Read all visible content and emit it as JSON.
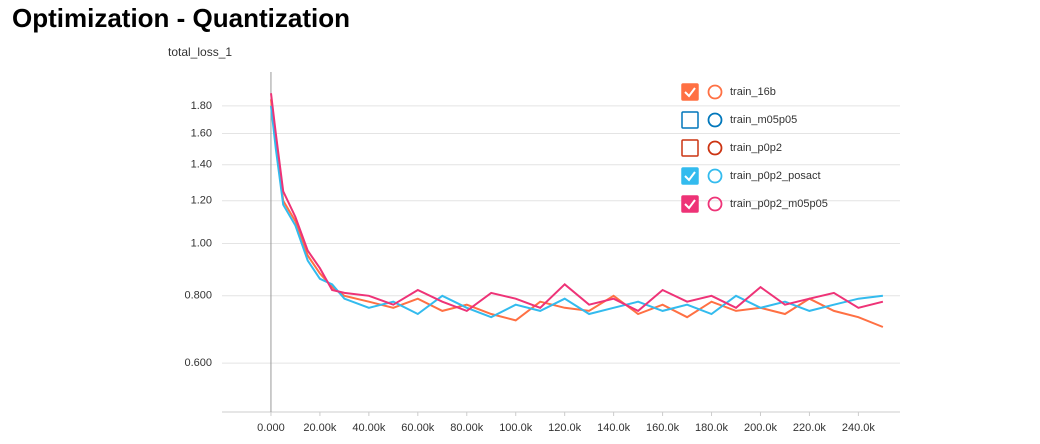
{
  "page_title": "Optimization - Quantization",
  "chart_data": {
    "type": "line",
    "title": "total_loss_1",
    "log_y": true,
    "grid": true,
    "legend": "top-right",
    "x": [
      0,
      2000,
      5000,
      10000,
      15000,
      20000,
      25000,
      30000,
      40000,
      50000,
      60000,
      70000,
      80000,
      90000,
      100000,
      110000,
      120000,
      130000,
      140000,
      150000,
      160000,
      170000,
      180000,
      190000,
      200000,
      210000,
      220000,
      230000,
      240000,
      250000
    ],
    "series": [
      {
        "name": "train_16b",
        "color": "#ff7043",
        "checked": true,
        "values": [
          1.85,
          1.55,
          1.2,
          1.1,
          0.95,
          0.88,
          0.83,
          0.8,
          0.78,
          0.76,
          0.79,
          0.75,
          0.77,
          0.74,
          0.72,
          0.78,
          0.76,
          0.75,
          0.8,
          0.74,
          0.77,
          0.73,
          0.78,
          0.75,
          0.76,
          0.74,
          0.79,
          0.75,
          0.73,
          0.7
        ]
      },
      {
        "name": "train_m05p05",
        "color": "#0077bb",
        "checked": false
      },
      {
        "name": "train_p0p2",
        "color": "#cc3311",
        "checked": false
      },
      {
        "name": "train_p0p2_posact",
        "color": "#33bbee",
        "checked": true,
        "values": [
          1.8,
          1.5,
          1.18,
          1.08,
          0.93,
          0.86,
          0.84,
          0.79,
          0.76,
          0.78,
          0.74,
          0.8,
          0.76,
          0.73,
          0.77,
          0.75,
          0.79,
          0.74,
          0.76,
          0.78,
          0.75,
          0.77,
          0.74,
          0.8,
          0.76,
          0.78,
          0.75,
          0.77,
          0.79,
          0.8
        ]
      },
      {
        "name": "train_p0p2_m05p05",
        "color": "#ee3377",
        "checked": true,
        "values": [
          1.9,
          1.6,
          1.25,
          1.12,
          0.97,
          0.9,
          0.82,
          0.81,
          0.8,
          0.77,
          0.82,
          0.78,
          0.75,
          0.81,
          0.79,
          0.76,
          0.84,
          0.77,
          0.79,
          0.75,
          0.82,
          0.78,
          0.8,
          0.76,
          0.83,
          0.77,
          0.79,
          0.81,
          0.76,
          0.78
        ]
      }
    ],
    "xlim": [
      -20000,
      257000
    ],
    "xticks": [
      {
        "value": 0,
        "label": "0.000"
      },
      {
        "value": 20000,
        "label": "20.00k"
      },
      {
        "value": 40000,
        "label": "40.00k"
      },
      {
        "value": 60000,
        "label": "60.00k"
      },
      {
        "value": 80000,
        "label": "80.00k"
      },
      {
        "value": 100000,
        "label": "100.0k"
      },
      {
        "value": 120000,
        "label": "120.0k"
      },
      {
        "value": 140000,
        "label": "140.0k"
      },
      {
        "value": 160000,
        "label": "160.0k"
      },
      {
        "value": 180000,
        "label": "180.0k"
      },
      {
        "value": 200000,
        "label": "200.0k"
      },
      {
        "value": 220000,
        "label": "220.0k"
      },
      {
        "value": 240000,
        "label": "240.0k"
      }
    ],
    "ylim": [
      0.487,
      2.08
    ],
    "yticks": [
      {
        "value": 0.6,
        "label": "0.600"
      },
      {
        "value": 0.8,
        "label": "0.800"
      },
      {
        "value": 1.0,
        "label": "1.00"
      },
      {
        "value": 1.2,
        "label": "1.20"
      },
      {
        "value": 1.4,
        "label": "1.40"
      },
      {
        "value": 1.6,
        "label": "1.60"
      },
      {
        "value": 1.8,
        "label": "1.80"
      }
    ]
  }
}
